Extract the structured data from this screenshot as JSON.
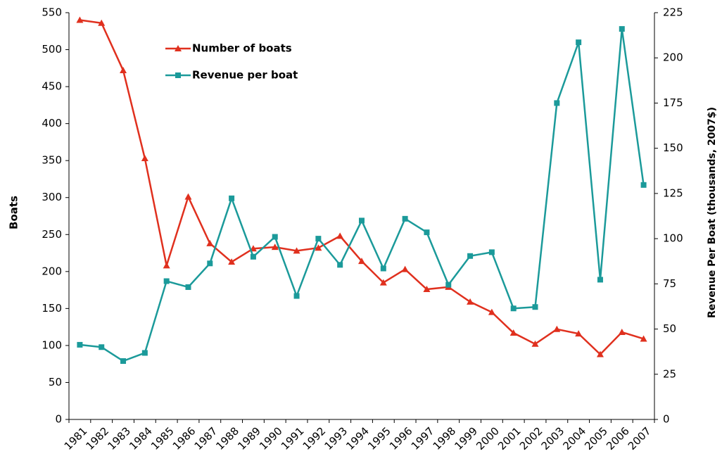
{
  "chart_data": {
    "type": "line",
    "categories": [
      "1981",
      "1982",
      "1983",
      "1984",
      "1985",
      "1986",
      "1987",
      "1988",
      "1989",
      "1990",
      "1991",
      "1992",
      "1993",
      "1994",
      "1995",
      "1996",
      "1997",
      "1998",
      "1999",
      "2000",
      "2001",
      "2002",
      "2003",
      "2004",
      "2005",
      "2006",
      "2007"
    ],
    "series": [
      {
        "name": "Number of boats",
        "color": "#e0301e",
        "marker": "triangle",
        "values": [
          540,
          536,
          472,
          353,
          208,
          301,
          238,
          213,
          231,
          233,
          228,
          232,
          248,
          214,
          185,
          203,
          176,
          179,
          159,
          145,
          117,
          102,
          122,
          116,
          88,
          118,
          109
        ]
      },
      {
        "name": "Revenue per boat",
        "color": "#1b9a9a",
        "marker": "square",
        "axis": "y2",
        "values": [
          41.3,
          40,
          32.3,
          36.8,
          76.5,
          73.2,
          86.3,
          122.3,
          90,
          101,
          68.3,
          100,
          85.5,
          110,
          83.5,
          111,
          103.5,
          74.5,
          90.4,
          92.5,
          61.4,
          62.2,
          175,
          208.6,
          77.3,
          216,
          129.7
        ]
      }
    ],
    "y_label": "Boats",
    "y2_label": "Revenue Per Boat (thousands, 2007$)",
    "ylim": [
      0,
      550
    ],
    "yticks": [
      0,
      50,
      100,
      150,
      200,
      250,
      300,
      350,
      400,
      450,
      500,
      550
    ],
    "y2lim": [
      0,
      225
    ],
    "y2ticks": [
      0,
      25,
      50,
      75,
      100,
      125,
      150,
      175,
      200,
      225
    ],
    "grid": false,
    "legend": "upper-left"
  }
}
